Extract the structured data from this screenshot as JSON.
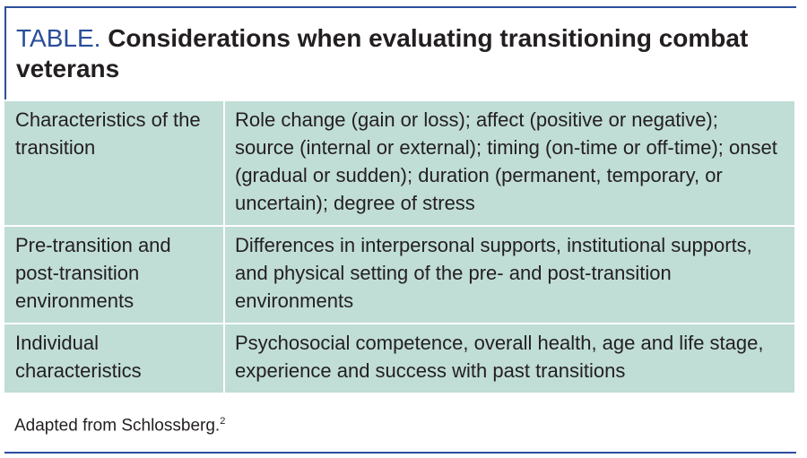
{
  "header": {
    "label": "TABLE.",
    "title": "Considerations when evaluating transitioning combat veterans"
  },
  "table": {
    "rows": [
      [
        "Characteristics of the transition",
        "Role change (gain or loss); affect (positive or negative); source (internal or external); timing (on-time or off-time); onset (gradual or sudden); duration (permanent, temporary, or uncertain); degree of stress"
      ],
      [
        "Pre-transition and post-transition environments",
        "Differences in interpersonal supports, institutional supports, and physical setting of the pre- and post-transition environments"
      ],
      [
        "Individual characteristics",
        "Psychosocial competence, overall health, age and life stage, experience and success with past transitions"
      ]
    ]
  },
  "footnote": {
    "text": "Adapted from Schlossberg.",
    "ref": "2"
  }
}
